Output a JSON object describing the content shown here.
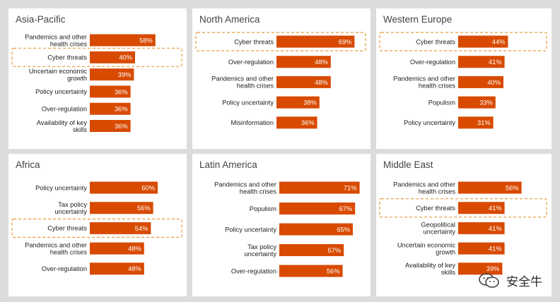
{
  "colors": {
    "bar": "#d84a00",
    "bar_label": "#ffffff",
    "highlight_border": "#e69a3a",
    "text": "#222222",
    "title": "#444444",
    "panel_bg": "#ffffff",
    "page_bg": "#dcdcdc"
  },
  "watermark": {
    "text": "安全牛",
    "icon": "wechat-icon"
  },
  "chart_data": [
    {
      "type": "bar",
      "orientation": "horizontal",
      "title": "Asia-Pacific",
      "categories": [
        "Pandemics and other health crises",
        "Cyber threats",
        "Uncertain economic growth",
        "Policy uncertainty",
        "Over-regulation",
        "Availability of key skills"
      ],
      "values": [
        58,
        40,
        39,
        36,
        36,
        36
      ],
      "value_labels": [
        "58%",
        "40%",
        "39%",
        "36%",
        "36%",
        "36%"
      ],
      "highlight": "Cyber threats",
      "xlim": [
        0,
        100
      ]
    },
    {
      "type": "bar",
      "orientation": "horizontal",
      "title": "North America",
      "categories": [
        "Cyber threats",
        "Over-regulation",
        "Pandemics and other health crises",
        "Policy uncertainty",
        "Misinformation"
      ],
      "values": [
        69,
        48,
        48,
        38,
        36
      ],
      "value_labels": [
        "69%",
        "48%",
        "48%",
        "38%",
        "36%"
      ],
      "highlight": "Cyber threats",
      "xlim": [
        0,
        100
      ]
    },
    {
      "type": "bar",
      "orientation": "horizontal",
      "title": "Western Europe",
      "categories": [
        "Cyber threats",
        "Over-regulation",
        "Pandemics and other health crises",
        "Populism",
        "Policy uncertainty"
      ],
      "values": [
        44,
        41,
        40,
        33,
        31
      ],
      "value_labels": [
        "44%",
        "41%",
        "40%",
        "33%",
        "31%"
      ],
      "highlight": "Cyber threats",
      "xlim": [
        0,
        100
      ]
    },
    {
      "type": "bar",
      "orientation": "horizontal",
      "title": "Africa",
      "categories": [
        "Policy uncertainty",
        "Tax policy uncertainty",
        "Cyber threats",
        "Pandemics and other health crises",
        "Over-regulation"
      ],
      "values": [
        60,
        56,
        54,
        48,
        48
      ],
      "value_labels": [
        "60%",
        "56%",
        "54%",
        "48%",
        "48%"
      ],
      "highlight": "Cyber threats",
      "xlim": [
        0,
        100
      ]
    },
    {
      "type": "bar",
      "orientation": "horizontal",
      "title": "Latin America",
      "categories": [
        "Pandemics and other health crises",
        "Populism",
        "Policy uncertainty",
        "Tax policy uncertainty",
        "Over-regulation"
      ],
      "values": [
        71,
        67,
        65,
        57,
        56
      ],
      "value_labels": [
        "71%",
        "67%",
        "65%",
        "57%",
        "56%"
      ],
      "highlight": "",
      "xlim": [
        0,
        100
      ]
    },
    {
      "type": "bar",
      "orientation": "horizontal",
      "title": "Middle East",
      "categories": [
        "Pandemics and other health crises",
        "Cyber threats",
        "Geopolitical uncertainty",
        "Uncertain economic growth",
        "Availability of key skills"
      ],
      "values": [
        56,
        41,
        41,
        41,
        39
      ],
      "value_labels": [
        "56%",
        "41%",
        "41%",
        "41%",
        "39%"
      ],
      "highlight": "Cyber threats",
      "xlim": [
        0,
        100
      ]
    }
  ]
}
